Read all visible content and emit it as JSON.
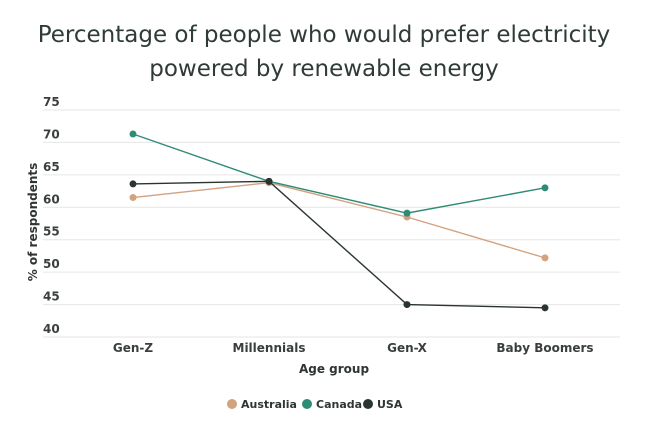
{
  "chart_data": {
    "type": "line",
    "title": "Percentage of people who would prefer electricity powered by renewable energy",
    "xlabel": "Age group",
    "ylabel": "% of respondents",
    "categories": [
      "Gen-Z",
      "Millennials",
      "Gen-X",
      "Baby Boomers"
    ],
    "ylim": [
      40,
      75
    ],
    "yticks": [
      40,
      45,
      50,
      55,
      60,
      65,
      70,
      75
    ],
    "grid": true,
    "legend_position": "bottom",
    "series": [
      {
        "name": "Australia",
        "color": "#d3a27f",
        "values": [
          61.5,
          63.8,
          58.5,
          52.2
        ]
      },
      {
        "name": "Canada",
        "color": "#2e8b76",
        "values": [
          71.3,
          64.0,
          59.1,
          63.0
        ]
      },
      {
        "name": "USA",
        "color": "#2b3530",
        "values": [
          63.6,
          64.0,
          45.0,
          44.5
        ]
      }
    ]
  }
}
